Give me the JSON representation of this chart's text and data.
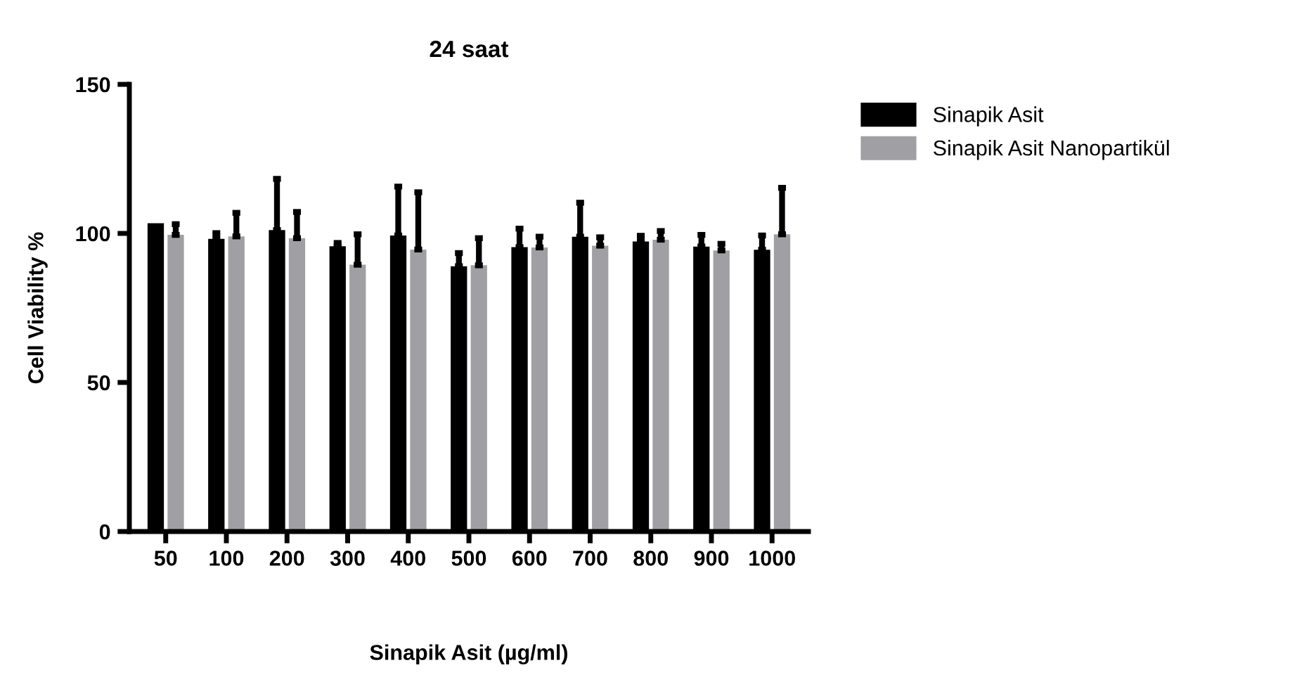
{
  "chart_data": {
    "type": "bar",
    "title": "24 saat",
    "xlabel": "Sinapik Asit (µg/ml)",
    "ylabel": "Cell Viability %",
    "categories": [
      "50",
      "100",
      "200",
      "300",
      "400",
      "500",
      "600",
      "700",
      "800",
      "900",
      "1000"
    ],
    "series": [
      {
        "name": "Sinapik Asit",
        "color": "#000000",
        "values": [
          103.4,
          98.2,
          101.1,
          95.7,
          99.3,
          89,
          95.4,
          98.9,
          97.3,
          95.6,
          94.5
        ],
        "errors": [
          null,
          [
            98.2,
            100.1
          ],
          [
            101.1,
            118.3
          ],
          [
            95.7,
            96.8
          ],
          [
            99.3,
            115.7
          ],
          [
            89,
            93.4
          ],
          [
            95.4,
            101.6
          ],
          [
            98.9,
            110.3
          ],
          [
            97.3,
            99.2
          ],
          [
            95.6,
            99.5
          ],
          [
            94.5,
            99.3
          ]
        ]
      },
      {
        "name": "Sinapik Asit Nanopartikül",
        "color": "#a0a0a4",
        "values": [
          99.5,
          99,
          98.4,
          89.5,
          94.6,
          89.3,
          95.3,
          95.9,
          97.9,
          94.3,
          99.7
        ],
        "errors": [
          [
            99.5,
            103.1
          ],
          [
            99,
            106.9
          ],
          [
            98.4,
            107.2
          ],
          [
            89.5,
            99.7
          ],
          [
            94.6,
            113.8
          ],
          [
            89.3,
            98.4
          ],
          [
            95.3,
            98.9
          ],
          [
            95.9,
            98.7
          ],
          [
            97.9,
            100.8
          ],
          [
            94.3,
            96.5
          ],
          [
            99.7,
            115.3
          ]
        ]
      }
    ],
    "ylim": [
      0,
      150
    ],
    "yticks": [
      0,
      50,
      100,
      150
    ],
    "grid": false,
    "legend": "top right"
  }
}
